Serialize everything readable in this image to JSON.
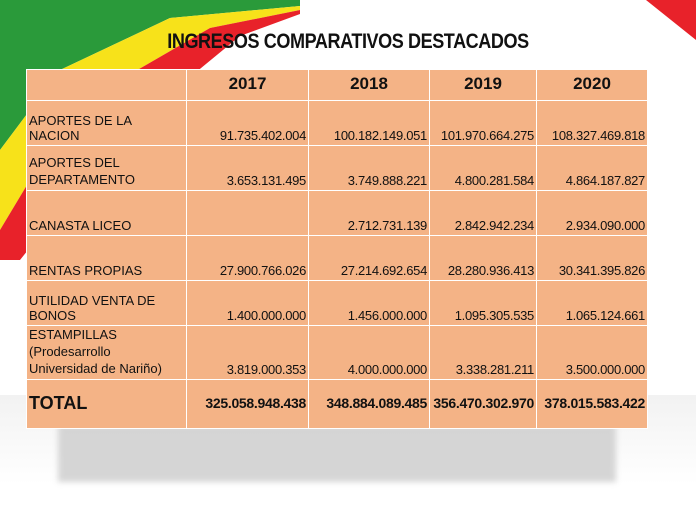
{
  "slide": {
    "title": "INGRESOS COMPARATIVOS DESTACADOS",
    "colors": {
      "table_fill": "#f4b386",
      "flag_red": "#e8222a",
      "flag_yellow": "#f7e21a",
      "flag_green": "#2a9a3a"
    }
  },
  "table": {
    "years": [
      "2017",
      "2018",
      "2019",
      "2020"
    ],
    "rows": [
      {
        "label": "APORTES DE LA NACION",
        "values": [
          "91.735.402.004",
          "100.182.149.051",
          "101.970.664.275",
          "108.327.469.818"
        ]
      },
      {
        "label_line1": " APORTES DEL",
        "label_line2": "DEPARTAMENTO",
        "values": [
          "3.653.131.495",
          "3.749.888.221",
          "4.800.281.584",
          "4.864.187.827"
        ]
      },
      {
        "label": "CANASTA LICEO",
        "values": [
          "",
          "2.712.731.139",
          "2.842.942.234",
          "2.934.090.000"
        ]
      },
      {
        "label": " RENTAS PROPIAS",
        "values": [
          "27.900.766.026",
          "27.214.692.654",
          "28.280.936.413",
          "30.341.395.826"
        ]
      },
      {
        "label": " UTILIDAD VENTA DE BONOS",
        "values": [
          "1.400.000.000",
          "1.456.000.000",
          "1.095.305.535",
          "1.065.124.661"
        ]
      },
      {
        "label_line1": " ESTAMPILLAS (Prodesarrollo",
        "label_line2": "Universidad de Nariño)",
        "values": [
          "3.819.000.353",
          "4.000.000.000",
          "3.338.281.211",
          "3.500.000.000"
        ]
      }
    ],
    "total": {
      "label": "TOTAL",
      "values": [
        "325.058.948.438",
        "348.884.089.485",
        "356.470.302.970",
        "378.015.583.422"
      ]
    }
  }
}
